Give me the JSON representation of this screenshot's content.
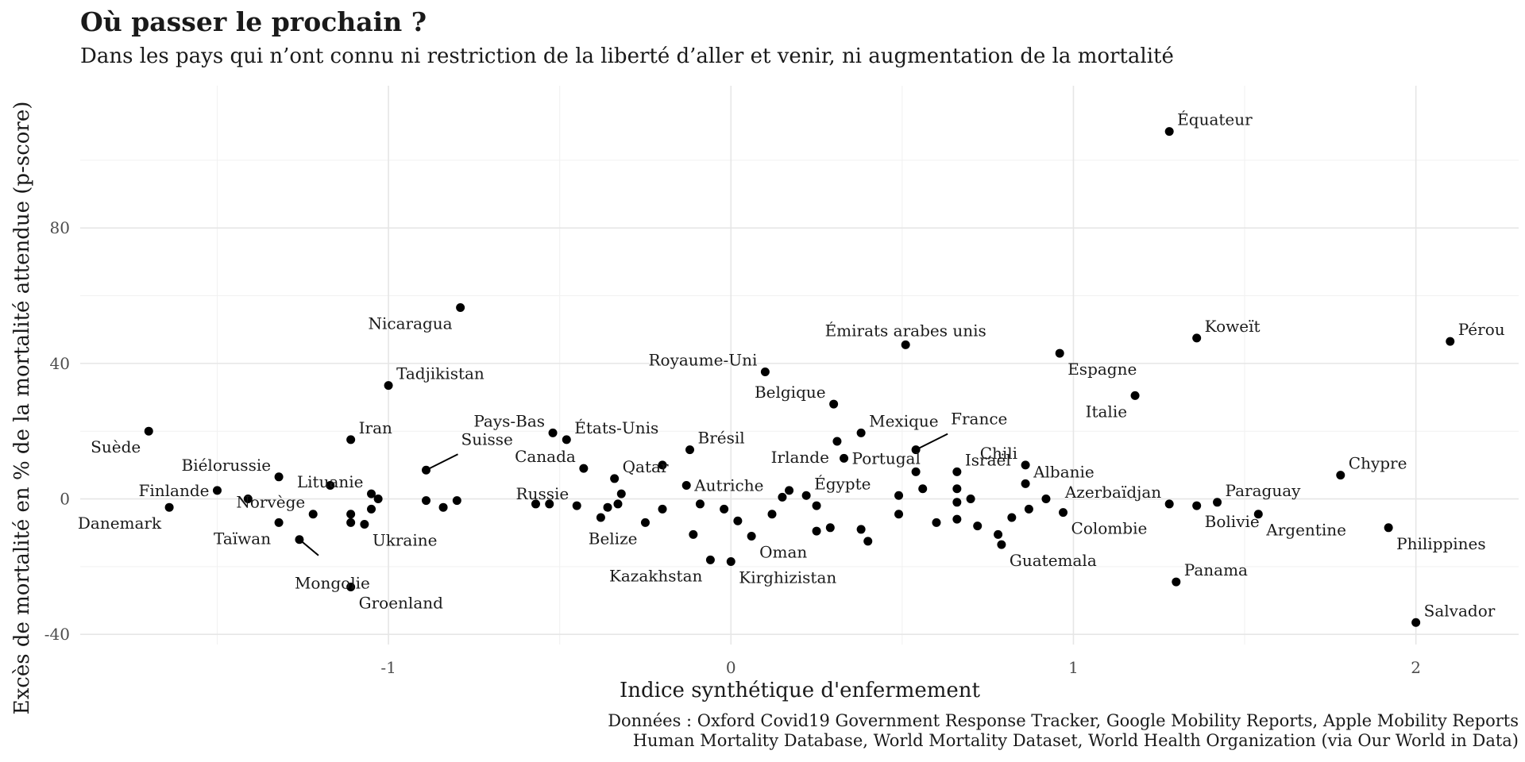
{
  "chart_data": {
    "type": "scatter",
    "title": "Où passer le prochain ?",
    "subtitle": "Dans les pays qui n’ont connu ni restriction de la liberté d’aller et venir, ni augmentation de la mortalité",
    "xlabel": "Indice synthétique d'enfermement",
    "ylabel": "Excès de mortalité en % de la mortalité attendue (p-score)",
    "xlim": [
      -1.9,
      2.3
    ],
    "ylim": [
      -43,
      122
    ],
    "x_ticks": [
      -1,
      0,
      1,
      2
    ],
    "x_tick_labels": [
      "-1",
      "0",
      "1",
      "2"
    ],
    "y_ticks": [
      -40,
      0,
      40,
      80
    ],
    "y_tick_labels": [
      "-40",
      "0",
      "40",
      "80"
    ],
    "grid": true,
    "legend": "none",
    "point_color": "#000000",
    "caption": [
      "Données : Oxford Covid19 Government Response Tracker, Google Mobility Reports, Apple Mobility Reports",
      "Human Mortality Database, World Mortality Dataset, World Health Organization (via Our World in Data)"
    ],
    "labeled_points": [
      {
        "label": "Équateur",
        "x": 1.28,
        "y": 108.5,
        "label_pos": "upper-right"
      },
      {
        "label": "Pérou",
        "x": 2.1,
        "y": 46.5,
        "label_pos": "upper-right"
      },
      {
        "label": "Koweït",
        "x": 1.36,
        "y": 47.5,
        "label_pos": "upper-right"
      },
      {
        "label": "Émirats arabes unis",
        "x": 0.51,
        "y": 45.5,
        "label_pos": "upper"
      },
      {
        "label": "Espagne",
        "x": 0.96,
        "y": 43.0,
        "label_pos": "lower-right"
      },
      {
        "label": "Italie",
        "x": 1.18,
        "y": 30.5,
        "label_pos": "lower-left"
      },
      {
        "label": "Nicaragua",
        "x": -0.79,
        "y": 56.5,
        "label_pos": "lower-left"
      },
      {
        "label": "Tadjikistan",
        "x": -1.0,
        "y": 33.5,
        "label_pos": "upper-right"
      },
      {
        "label": "Royaume-Uni",
        "x": 0.1,
        "y": 37.5,
        "label_pos": "upper-left"
      },
      {
        "label": "Belgique",
        "x": 0.3,
        "y": 28.0,
        "label_pos": "upper-left"
      },
      {
        "label": "Mexique",
        "x": 0.38,
        "y": 19.5,
        "label_pos": "upper-right"
      },
      {
        "label": "Irlande",
        "x": 0.31,
        "y": 17.0,
        "label_pos": "lower-left"
      },
      {
        "label": "Portugal",
        "x": 0.33,
        "y": 12.0,
        "label_pos": "right"
      },
      {
        "label": "France",
        "x": 0.54,
        "y": 14.5,
        "label_pos": "leader-upper-right"
      },
      {
        "label": "Égypte",
        "x": 0.22,
        "y": 1.0,
        "label_pos": "upper-right"
      },
      {
        "label": "Pays-Bas",
        "x": -0.52,
        "y": 19.5,
        "label_pos": "upper-left"
      },
      {
        "label": "États-Unis",
        "x": -0.48,
        "y": 17.5,
        "label_pos": "upper-right"
      },
      {
        "label": "Canada",
        "x": -0.43,
        "y": 9.0,
        "label_pos": "upper-left"
      },
      {
        "label": "Qatar",
        "x": -0.34,
        "y": 6.0,
        "label_pos": "upper-right"
      },
      {
        "label": "Brésil",
        "x": -0.12,
        "y": 14.5,
        "label_pos": "upper-right"
      },
      {
        "label": "Autriche",
        "x": -0.13,
        "y": 4.0,
        "label_pos": "right"
      },
      {
        "label": "Russie",
        "x": -0.45,
        "y": -2.0,
        "label_pos": "upper-left"
      },
      {
        "label": "Belize",
        "x": -0.25,
        "y": -7.0,
        "label_pos": "lower-left"
      },
      {
        "label": "Kazakhstan",
        "x": -0.06,
        "y": -18.0,
        "label_pos": "lower-left"
      },
      {
        "label": "Kirghizistan",
        "x": 0.0,
        "y": -18.5,
        "label_pos": "lower-right"
      },
      {
        "label": "Oman",
        "x": 0.06,
        "y": -11.0,
        "label_pos": "lower-right"
      },
      {
        "label": "Israël",
        "x": 0.66,
        "y": 8.0,
        "label_pos": "upper-right"
      },
      {
        "label": "Chili",
        "x": 0.86,
        "y": 10.0,
        "label_pos": "upper-left"
      },
      {
        "label": "Albanie",
        "x": 0.86,
        "y": 4.5,
        "label_pos": "upper-right"
      },
      {
        "label": "Colombie",
        "x": 0.97,
        "y": -4.0,
        "label_pos": "lower-right"
      },
      {
        "label": "Guatemala",
        "x": 0.79,
        "y": -13.5,
        "label_pos": "lower-right"
      },
      {
        "label": "Azerbaïdjan",
        "x": 1.28,
        "y": -1.5,
        "label_pos": "upper-left"
      },
      {
        "label": "Bolivie",
        "x": 1.36,
        "y": -2.0,
        "label_pos": "lower-right"
      },
      {
        "label": "Paraguay",
        "x": 1.42,
        "y": -1.0,
        "label_pos": "upper-right"
      },
      {
        "label": "Argentine",
        "x": 1.54,
        "y": -4.5,
        "label_pos": "lower-right"
      },
      {
        "label": "Panama",
        "x": 1.3,
        "y": -24.5,
        "label_pos": "upper-right"
      },
      {
        "label": "Chypre",
        "x": 1.78,
        "y": 7.0,
        "label_pos": "upper-right"
      },
      {
        "label": "Philippines",
        "x": 1.92,
        "y": -8.5,
        "label_pos": "lower-right"
      },
      {
        "label": "Salvador",
        "x": 2.0,
        "y": -36.5,
        "label_pos": "upper-right"
      },
      {
        "label": "Suède",
        "x": -1.7,
        "y": 20.0,
        "label_pos": "lower-left"
      },
      {
        "label": "Iran",
        "x": -1.11,
        "y": 17.5,
        "label_pos": "upper-right"
      },
      {
        "label": "Suisse",
        "x": -0.89,
        "y": 8.5,
        "label_pos": "leader-upper-right"
      },
      {
        "label": "Biélorussie",
        "x": -1.32,
        "y": 6.5,
        "label_pos": "upper-left"
      },
      {
        "label": "Lituanie",
        "x": -1.05,
        "y": 1.5,
        "label_pos": "upper-left"
      },
      {
        "label": "Finlande",
        "x": -1.5,
        "y": 2.5,
        "label_pos": "left"
      },
      {
        "label": "Danemark",
        "x": -1.64,
        "y": -2.5,
        "label_pos": "lower-left"
      },
      {
        "label": "Norvège",
        "x": -1.22,
        "y": -4.5,
        "label_pos": "upper-left"
      },
      {
        "label": "Taïwan",
        "x": -1.32,
        "y": -7.0,
        "label_pos": "lower-left"
      },
      {
        "label": "Ukraine",
        "x": -1.07,
        "y": -7.5,
        "label_pos": "lower-right"
      },
      {
        "label": "Mongolie",
        "x": -1.26,
        "y": -12.0,
        "label_pos": "leader-lower-right"
      },
      {
        "label": "Groenland",
        "x": -1.11,
        "y": -26.0,
        "label_pos": "lower-right"
      }
    ],
    "unlabeled_points": [
      {
        "x": -1.41,
        "y": 0.0
      },
      {
        "x": -1.17,
        "y": 4.0
      },
      {
        "x": -1.11,
        "y": -4.5
      },
      {
        "x": -1.11,
        "y": -7.0
      },
      {
        "x": -1.05,
        "y": -3.0
      },
      {
        "x": -1.03,
        "y": 0.0
      },
      {
        "x": -0.89,
        "y": -0.5
      },
      {
        "x": -0.84,
        "y": -2.5
      },
      {
        "x": -0.8,
        "y": -0.5
      },
      {
        "x": -0.57,
        "y": -1.5
      },
      {
        "x": -0.53,
        "y": -1.5
      },
      {
        "x": -0.38,
        "y": -5.5
      },
      {
        "x": -0.36,
        "y": -2.5
      },
      {
        "x": -0.33,
        "y": -1.5
      },
      {
        "x": -0.32,
        "y": 1.5
      },
      {
        "x": -0.2,
        "y": 10.0
      },
      {
        "x": -0.2,
        "y": -3.0
      },
      {
        "x": -0.11,
        "y": -10.5
      },
      {
        "x": -0.09,
        "y": -1.5
      },
      {
        "x": -0.02,
        "y": -3.0
      },
      {
        "x": 0.02,
        "y": -6.5
      },
      {
        "x": 0.12,
        "y": -4.5
      },
      {
        "x": 0.17,
        "y": 2.5
      },
      {
        "x": 0.15,
        "y": 0.5
      },
      {
        "x": 0.25,
        "y": -2.0
      },
      {
        "x": 0.25,
        "y": -9.5
      },
      {
        "x": 0.29,
        "y": -8.5
      },
      {
        "x": 0.38,
        "y": -9.0
      },
      {
        "x": 0.4,
        "y": -12.5
      },
      {
        "x": 0.49,
        "y": 1.0
      },
      {
        "x": 0.49,
        "y": -4.5
      },
      {
        "x": 0.54,
        "y": 8.0
      },
      {
        "x": 0.56,
        "y": 3.0
      },
      {
        "x": 0.6,
        "y": -7.0
      },
      {
        "x": 0.66,
        "y": 3.0
      },
      {
        "x": 0.66,
        "y": -1.0
      },
      {
        "x": 0.66,
        "y": -6.0
      },
      {
        "x": 0.7,
        "y": 0.0
      },
      {
        "x": 0.72,
        "y": -8.0
      },
      {
        "x": 0.78,
        "y": -10.5
      },
      {
        "x": 0.82,
        "y": -5.5
      },
      {
        "x": 0.87,
        "y": -3.0
      },
      {
        "x": 0.92,
        "y": 0.0
      }
    ]
  }
}
